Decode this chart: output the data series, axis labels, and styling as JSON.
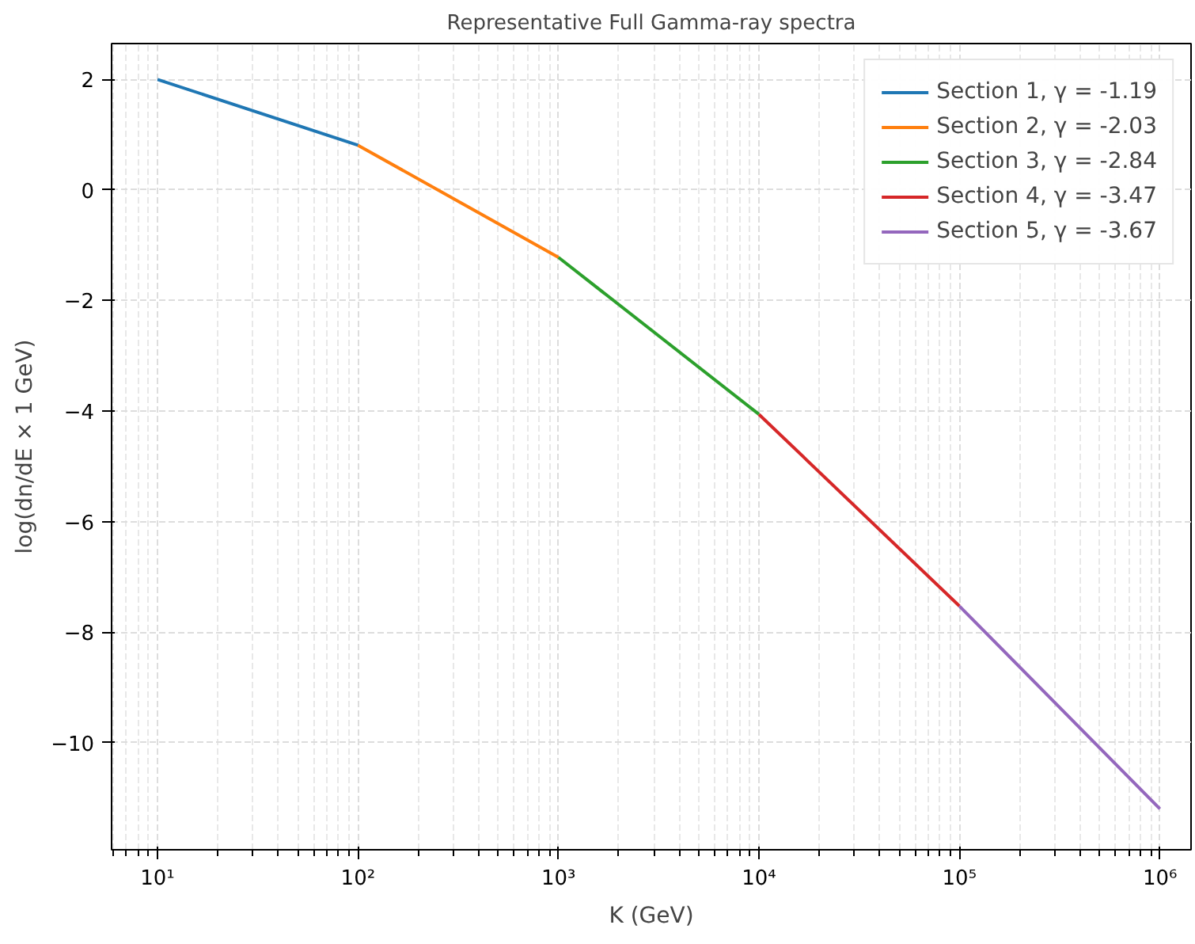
{
  "chart_data": {
    "type": "line",
    "title": "Representative Full Gamma-ray spectra",
    "xlabel": "K (GeV)",
    "ylabel": "log(dn/dE × 1 GeV)",
    "log": "x",
    "grid": true,
    "legend": "top right",
    "line_style": "solid",
    "marker": "none",
    "xlim": [
      5.9,
      1430000
    ],
    "ylim": [
      -11.94,
      2.65
    ],
    "xticks": [
      {
        "value": 10,
        "label": "10¹"
      },
      {
        "value": 100,
        "label": "10²"
      },
      {
        "value": 1000,
        "label": "10³"
      },
      {
        "value": 10000,
        "label": "10⁴"
      },
      {
        "value": 100000,
        "label": "10⁵"
      },
      {
        "value": 1000000,
        "label": "10⁶"
      }
    ],
    "yticks": [
      {
        "value": -10,
        "label": "−10"
      },
      {
        "value": -8,
        "label": "−8"
      },
      {
        "value": -6,
        "label": "−6"
      },
      {
        "value": -4,
        "label": "−4"
      },
      {
        "value": -2,
        "label": "−2"
      },
      0,
      2
    ],
    "series": [
      {
        "name": "Section 1, γ = -1.19",
        "color": "#1f77b4",
        "x": [
          10,
          100
        ],
        "values": [
          2.0,
          0.81
        ]
      },
      {
        "name": "Section 2, γ = -2.03",
        "color": "#ff7f0e",
        "x": [
          100,
          1000
        ],
        "values": [
          0.81,
          -1.22
        ]
      },
      {
        "name": "Section 3, γ = -2.84",
        "color": "#2ca02c",
        "x": [
          1000,
          10000
        ],
        "values": [
          -1.22,
          -4.06
        ]
      },
      {
        "name": "Section 4, γ = -3.47",
        "color": "#d62728",
        "x": [
          10000,
          100000
        ],
        "values": [
          -4.06,
          -7.53
        ]
      },
      {
        "name": "Section 5, γ = -3.67",
        "color": "#9467bd",
        "x": [
          100000,
          1000000
        ],
        "values": [
          -7.53,
          -11.2
        ]
      }
    ]
  }
}
